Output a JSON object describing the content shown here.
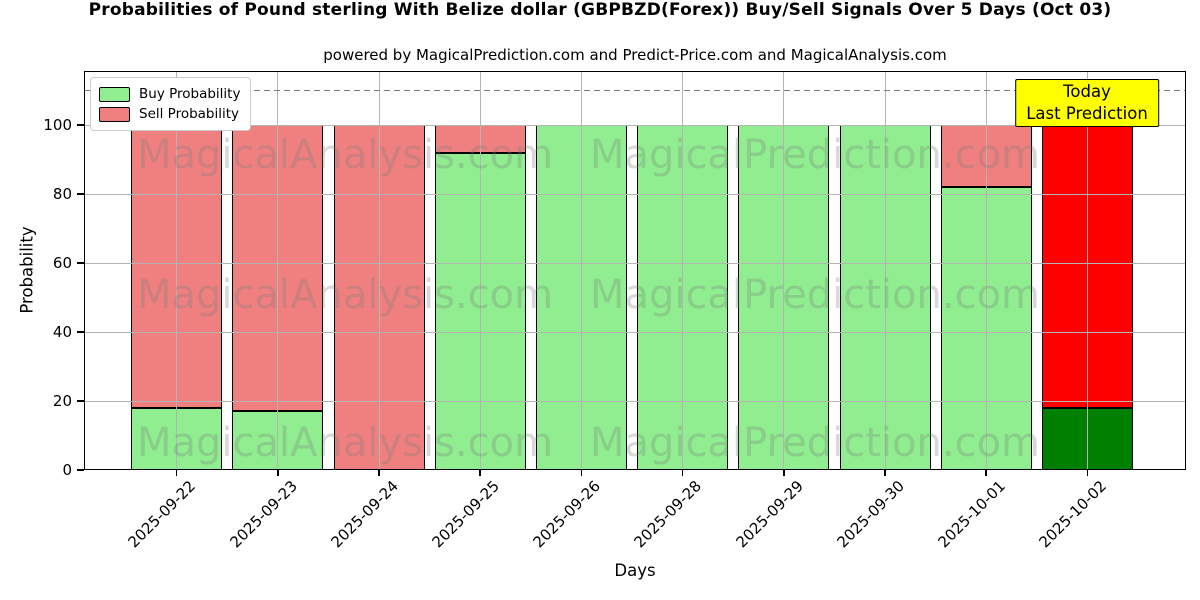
{
  "chart_data": {
    "type": "bar",
    "stacked": true,
    "title": "Probabilities of Pound sterling With Belize dollar (GBPBZD(Forex)) Buy/Sell Signals Over 5 Days (Oct 03)",
    "subtitle": "powered by MagicalPrediction.com and Predict-Price.com and MagicalAnalysis.com",
    "xlabel": "Days",
    "ylabel": "Probability",
    "categories": [
      "2025-09-22",
      "2025-09-23",
      "2025-09-24",
      "2025-09-25",
      "2025-09-26",
      "2025-09-28",
      "2025-09-29",
      "2025-09-30",
      "2025-10-01",
      "2025-10-02"
    ],
    "series": [
      {
        "name": "Buy Probability",
        "color": "#90EE90",
        "today_color": "#008000",
        "values": [
          18,
          17,
          0,
          92,
          100,
          100,
          100,
          100,
          82,
          18
        ]
      },
      {
        "name": "Sell Probability",
        "color": "#F08080",
        "today_color": "#FF0000",
        "values": [
          82,
          83,
          100,
          8,
          0,
          0,
          0,
          0,
          18,
          82
        ]
      }
    ],
    "today_index": 9,
    "yticks": [
      0,
      20,
      40,
      60,
      80,
      100
    ],
    "ylim": [
      0,
      115.7
    ],
    "dashed_line_y": 110,
    "grid": true,
    "legend_position": "upper left",
    "watermarks": [
      "MagicalAnalysis.com",
      "MagicalPrediction.com"
    ]
  },
  "annotation": {
    "line1": "Today",
    "line2": "Last Prediction",
    "bg_color": "#FFFF00"
  }
}
